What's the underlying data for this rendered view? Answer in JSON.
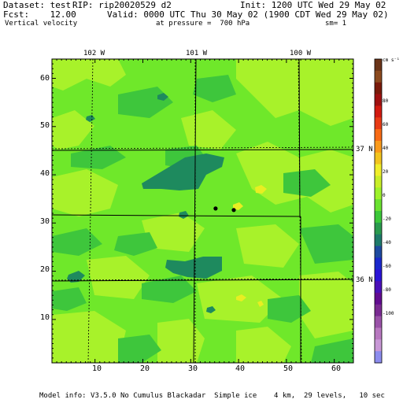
{
  "header": {
    "dataset": "Dataset: test",
    "rip": "RIP: rip20020529 d2",
    "init": "Init: 1200 UTC Wed 29 May 02",
    "fcst": "Fcst:    12.00",
    "valid": "Valid: 0000 UTC Thu 30 May 02 (1900 CDT Wed 29 May 02)",
    "field": "Vertical velocity",
    "pressure": "at pressure =  700 hPa",
    "smoothing": "sm= 1"
  },
  "footer": {
    "model_info": "Model info: V3.5.0 No Cumulus Blackadar  Simple ice    4 km,  29 levels,   10 sec"
  },
  "grid": {
    "x_ticks": [
      "10",
      "20",
      "30",
      "40",
      "50",
      "60"
    ],
    "y_ticks": [
      "10",
      "20",
      "30",
      "40",
      "50",
      "60"
    ],
    "longitudes": [
      "102 W",
      "101 W",
      "100 W"
    ],
    "latitudes": [
      "37 N",
      "36 N"
    ]
  },
  "colorbar": {
    "units": "cm s⁻¹",
    "labels": [
      "80",
      "60",
      "40",
      "20",
      "0",
      "-20",
      "-40",
      "-60",
      "-80",
      "-100"
    ],
    "colors": [
      "#6a3418",
      "#8c4a1e",
      "#7a1a0a",
      "#a01010",
      "#d21a10",
      "#e83a14",
      "#f86a14",
      "#fa9a1a",
      "#f2c41e",
      "#f0ee2a",
      "#c8ee28",
      "#9ef22a",
      "#6ae230",
      "#3cc83a",
      "#2a9a4e",
      "#1e7a6a",
      "#1e4aa0",
      "#1a28cc",
      "#2a14d6",
      "#4a10b8",
      "#620c90",
      "#7a2a92",
      "#9a52a8",
      "#b878c0",
      "#c898d6",
      "#8c8cee"
    ]
  },
  "map_colors": {
    "background": "#6fe82a",
    "light_green": "#a8f22a",
    "green": "#3ec63c",
    "teal": "#1e8a5e",
    "yellow": "#e8ee22"
  },
  "markers": [
    {
      "name": "city-marker",
      "x": 35.2,
      "y": 33.0
    },
    {
      "name": "city-marker",
      "x": 39.0,
      "y": 32.7
    }
  ]
}
